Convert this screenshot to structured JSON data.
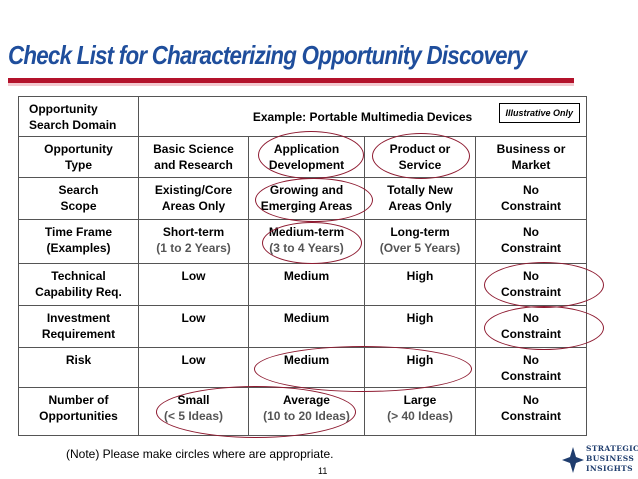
{
  "title": "Check List for Characterizing Opportunity Discovery",
  "header": {
    "label_line1": "Opportunity",
    "label_line2": "Search Domain",
    "example": "Example: Portable Multimedia Devices",
    "badge": "Illustrative Only"
  },
  "rows": [
    {
      "label": [
        "Opportunity",
        "Type"
      ],
      "cells": [
        [
          "Basic Science",
          "and Research"
        ],
        [
          "Application",
          "Development"
        ],
        [
          "Product or",
          "Service"
        ],
        [
          "Business or",
          "Market"
        ]
      ]
    },
    {
      "label": [
        "Search",
        "Scope"
      ],
      "cells": [
        [
          "Existing/Core",
          "Areas Only"
        ],
        [
          "Growing and",
          "Emerging Areas"
        ],
        [
          "Totally New",
          "Areas Only"
        ],
        [
          "No",
          "Constraint"
        ]
      ]
    },
    {
      "label": [
        "Time Frame",
        "(Examples)"
      ],
      "cells": [
        [
          "Short-term",
          "(1 to 2 Years)"
        ],
        [
          "Medium-term",
          "(3 to 4 Years)"
        ],
        [
          "Long-term",
          "(Over 5 Years)"
        ],
        [
          "No",
          "Constraint"
        ]
      ]
    },
    {
      "label": [
        "Technical",
        "Capability Req."
      ],
      "cells": [
        [
          "Low"
        ],
        [
          "Medium"
        ],
        [
          "High"
        ],
        [
          "No",
          "Constraint"
        ]
      ]
    },
    {
      "label": [
        "Investment",
        "Requirement"
      ],
      "cells": [
        [
          "Low"
        ],
        [
          "Medium"
        ],
        [
          "High"
        ],
        [
          "No",
          "Constraint"
        ]
      ]
    },
    {
      "label": [
        "Risk"
      ],
      "cells": [
        [
          "Low"
        ],
        [
          "Medium"
        ],
        [
          "High"
        ],
        [
          "No",
          "Constraint"
        ]
      ]
    },
    {
      "label": [
        "Number of",
        "Opportunities"
      ],
      "cells": [
        [
          "Small",
          "(< 5 Ideas)"
        ],
        [
          "Average",
          "(10 to 20 Ideas)"
        ],
        [
          "Large",
          "(> 40 Ideas)"
        ],
        [
          "No",
          "Constraint"
        ]
      ]
    }
  ],
  "note": "(Note) Please make circles where are appropriate.",
  "page_number": "11",
  "logo": {
    "line1": "STRATEGIC",
    "line2": "BUSINESS",
    "line3": "INSIGHTS"
  },
  "colors": {
    "title": "#1f4e9c",
    "rule": "#b3122b",
    "circle": "#8e1b31"
  }
}
